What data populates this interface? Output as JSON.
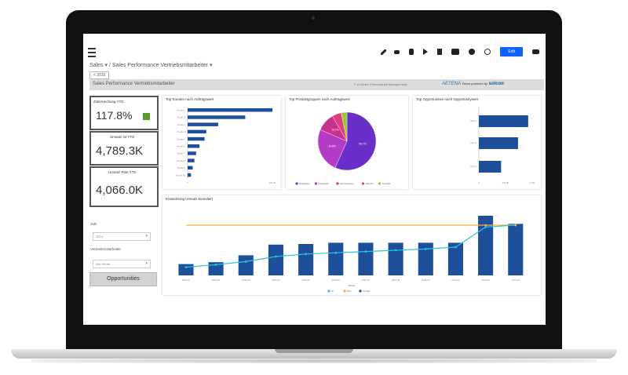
{
  "topbar": {
    "edit_label": "Edit"
  },
  "breadcrumb": {
    "root": "Sales",
    "separator": "/",
    "page": "Sales Performance Vertriebsmitarbeiter"
  },
  "year_chip": "< 2016",
  "subbar": {
    "title": "Sales Performance Vertriebsmitarbeiter",
    "link": "↗ zu Sales Performance Management",
    "brand_a": "AETENA",
    "brand_text": "Direct powered by",
    "brand_s": "solcon"
  },
  "kpis": [
    {
      "label": "Zielerreichung YTD",
      "value": "117.8%",
      "status_color": "#5a9a2a"
    },
    {
      "label": "Umsatz Ist YTD",
      "value": "4,789.3K"
    },
    {
      "label": "Umsatz Plan YTD",
      "value": "4,066.0K"
    }
  ],
  "filters": {
    "year_label": "Jahr",
    "year_value": "2016",
    "employee_label": "Vertriebsmitarbeiter",
    "employee_value": "Alle Werte"
  },
  "opportunities_label": "Opportunities",
  "colors": {
    "bar_blue": "#1d4f9b",
    "line_cyan": "#27c3dc",
    "line_orange": "#f2b233",
    "accent": "#0f62fe"
  },
  "panels": {
    "kunden_title": "Top Kunden nach Auftragswert",
    "produkt_title": "Top Produktgruppen nach Auftragswert",
    "opport_title": "Top Opportunities nach Opportunitywert",
    "umsatz_title": "Entwicklung Umsatz kumuliert"
  },
  "chart_data": [
    {
      "type": "bar",
      "orientation": "horizontal",
      "title": "Top Kunden nach Auftragswert",
      "categories": [
        "Kunde 1",
        "Kunde 2",
        "Kunde 3",
        "Kunde 4",
        "Kunde 5",
        "Kunde 6",
        "Kunde 7",
        "Kunde 8",
        "Kunde 9",
        "Kunde 10"
      ],
      "values": [
        100,
        68,
        36,
        22,
        20,
        14,
        10,
        8,
        6,
        4
      ],
      "xlim": [
        0,
        100
      ],
      "x_ticks": [
        "0",
        "",
        "",
        "",
        "100.0K"
      ]
    },
    {
      "type": "pie",
      "title": "Top Produktgruppen nach Auftragswert",
      "slices": [
        {
          "name": "Maschinen",
          "value": 56.7,
          "label": "56.7%",
          "color": "#6a2fc9"
        },
        {
          "name": "Ersatzteile",
          "value": 24.8,
          "label": "24.8%",
          "color": "#b43cc7"
        },
        {
          "name": "Dienstleistung",
          "value": 10.1,
          "label": "10.1%",
          "color": "#c8318c"
        },
        {
          "name": "Zubehör",
          "value": 5.2,
          "label": "",
          "color": "#e0407a"
        },
        {
          "name": "Sonstige",
          "value": 3.2,
          "label": "",
          "color": "#9bc53d"
        }
      ]
    },
    {
      "type": "bar",
      "orientation": "horizontal",
      "title": "Top Opportunities nach Opportunitywert",
      "categories": [
        "Opp 1",
        "Opp 2",
        "Opp 3"
      ],
      "values": [
        1.02,
        0.81,
        0.46
      ],
      "xlim": [
        0,
        1.5
      ],
      "x_ticks": [
        "0",
        "500.0K",
        "1.0M"
      ]
    },
    {
      "type": "bar",
      "title": "Entwicklung Umsatz kumuliert",
      "categories": [
        "2016-01",
        "2016-02",
        "2016-03",
        "2016-04",
        "2016-05",
        "2016-06",
        "2016-07",
        "2016-08",
        "2016-09",
        "2016-10",
        "2016-11",
        "2016-12"
      ],
      "series": [
        {
          "name": "Umsatz",
          "kind": "bar",
          "values": [
            180,
            210,
            320,
            490,
            500,
            520,
            520,
            520,
            520,
            520,
            950,
            820
          ]
        },
        {
          "name": "Ist",
          "kind": "line",
          "values": [
            130,
            170,
            220,
            300,
            340,
            360,
            380,
            400,
            420,
            450,
            770,
            800
          ]
        },
        {
          "name": "Plan",
          "kind": "line",
          "values": [
            800,
            800,
            800,
            800,
            800,
            800,
            800,
            800,
            800,
            800,
            800,
            800
          ]
        }
      ],
      "ylim": [
        0,
        1000
      ],
      "xlabel": "Monat"
    }
  ]
}
